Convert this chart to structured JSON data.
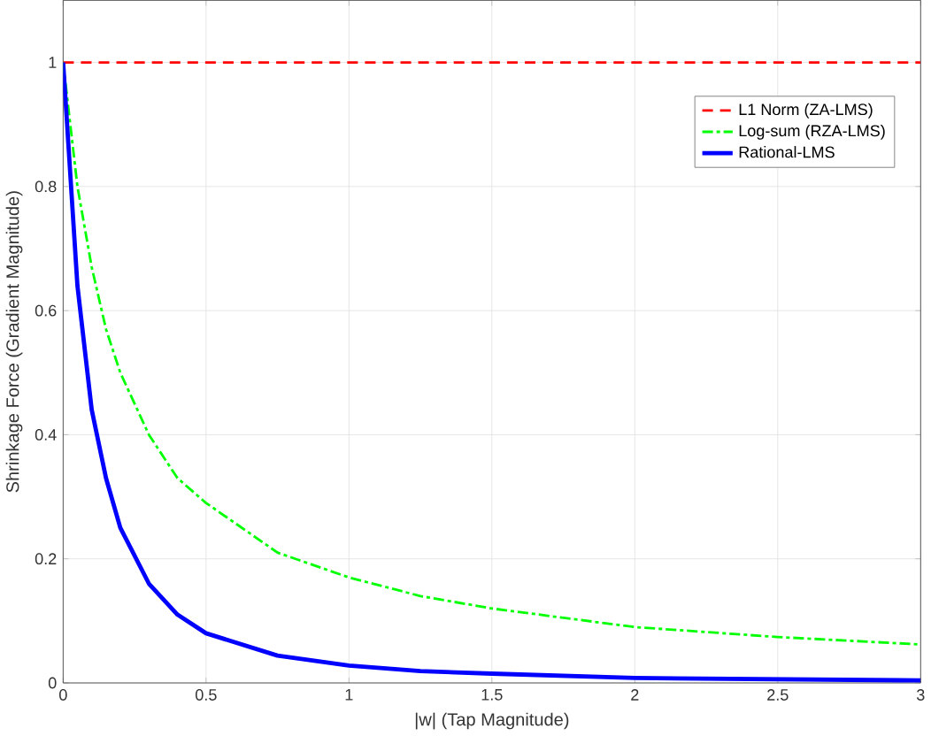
{
  "chart_data": {
    "type": "line",
    "xlabel": "|w| (Tap Magnitude)",
    "ylabel": "Shrinkage Force (Gradient Magnitude)",
    "x": [
      0,
      0.05,
      0.1,
      0.15,
      0.2,
      0.3,
      0.4,
      0.5,
      0.75,
      1,
      1.25,
      1.5,
      2,
      2.5,
      3
    ],
    "series": [
      {
        "name": "L1 Norm (ZA-LMS)",
        "color": "#ff0000",
        "line_style": "dashed",
        "values": [
          1,
          1,
          1,
          1,
          1,
          1,
          1,
          1,
          1,
          1,
          1,
          1,
          1,
          1,
          1
        ]
      },
      {
        "name": "Log-sum (RZA-LMS)",
        "color": "#00ff00",
        "line_style": "dashdot",
        "values": [
          1,
          0.8,
          0.67,
          0.57,
          0.5,
          0.4,
          0.33,
          0.29,
          0.21,
          0.17,
          0.14,
          0.12,
          0.09,
          0.074,
          0.062
        ]
      },
      {
        "name": "Rational-LMS",
        "color": "#0000ff",
        "line_style": "solid",
        "values": [
          1,
          0.64,
          0.44,
          0.33,
          0.25,
          0.16,
          0.11,
          0.08,
          0.044,
          0.028,
          0.019,
          0.015,
          0.008,
          0.006,
          0.004
        ]
      }
    ],
    "xlim": [
      0,
      3
    ],
    "ylim": [
      0,
      1.1
    ],
    "xticks": [
      0,
      0.5,
      1,
      1.5,
      2,
      2.5,
      3
    ],
    "yticks": [
      0,
      0.2,
      0.4,
      0.6,
      0.8,
      1
    ],
    "grid": true,
    "legend": "top right",
    "marker": "none"
  }
}
